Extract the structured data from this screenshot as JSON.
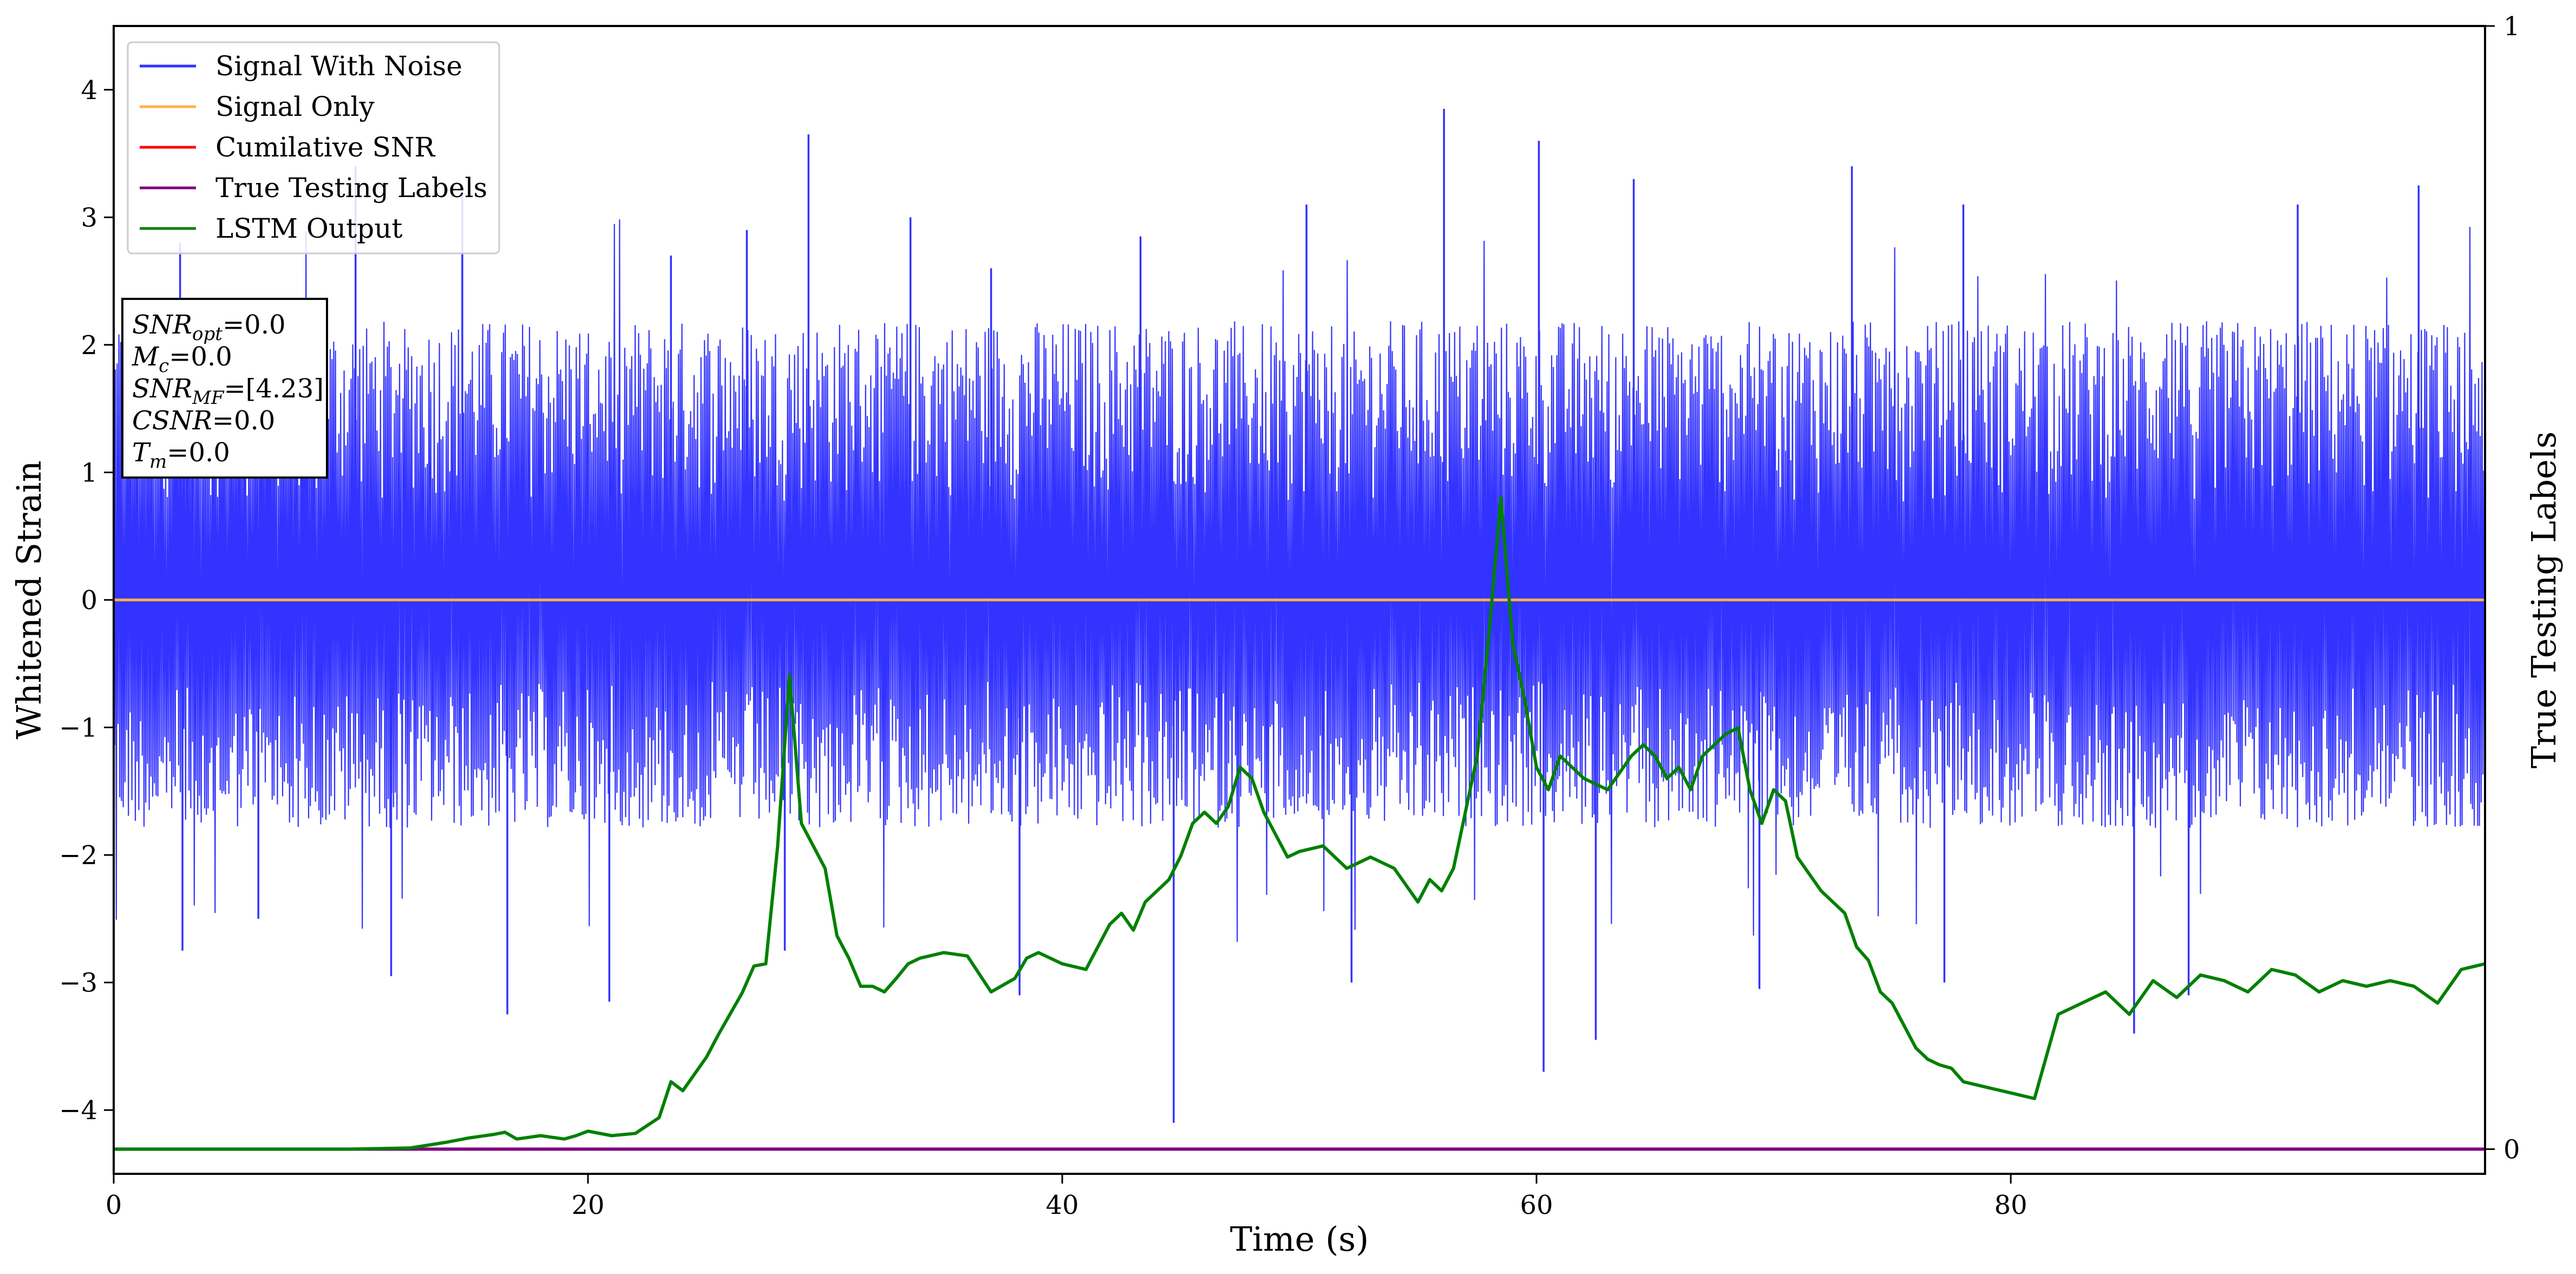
{
  "chart_data": {
    "type": "line",
    "title": "",
    "xlabel": "Time (s)",
    "ylabel": "Whitened Strain",
    "ylabel_right": "True Testing Labels",
    "xlim": [
      0,
      100
    ],
    "ylim": [
      -4.5,
      4.5
    ],
    "ylim_right": [
      -0.022,
      1.0
    ],
    "x_ticks": [
      "0",
      "20",
      "40",
      "60",
      "80"
    ],
    "y_ticks": [
      "−4",
      "−3",
      "−2",
      "−1",
      "0",
      "1",
      "2",
      "3",
      "4"
    ],
    "y_ticks_right": [
      "0",
      "1"
    ],
    "grid": false,
    "legend_position": "top-left",
    "legend": [
      {
        "label": "Signal With Noise",
        "color": "#3333ff"
      },
      {
        "label": "Signal Only",
        "color": "#ffb347"
      },
      {
        "label": "Cumilative SNR",
        "color": "#ff0000"
      },
      {
        "label": "True Testing Labels",
        "color": "#800080"
      },
      {
        "label": "LSTM Output",
        "color": "#008000"
      }
    ],
    "annotation": {
      "lines": [
        {
          "base": "SNR",
          "sub": "opt",
          "rest": "=0.0"
        },
        {
          "base": "M",
          "sub": "c",
          "rest": "=0.0"
        },
        {
          "base": "SNR",
          "sub": "MF",
          "rest": "=[4.23]"
        },
        {
          "base": "CSNR",
          "sub": "",
          "rest": "=0.0"
        },
        {
          "base": "T",
          "sub": "m",
          "rest": "=0.0"
        }
      ]
    },
    "series": [
      {
        "name": "Signal With Noise",
        "color": "#3333ff",
        "axis": "left",
        "x_range": [
          0,
          100
        ],
        "envelope_upper": 2.2,
        "envelope_lower": -1.8,
        "spikes_up": [
          [
            2.8,
            2.8
          ],
          [
            10.2,
            3.4
          ],
          [
            14.7,
            3.2
          ],
          [
            23.5,
            2.7
          ],
          [
            26.7,
            2.9
          ],
          [
            29.3,
            3.65
          ],
          [
            33.6,
            3.0
          ],
          [
            37.0,
            2.6
          ],
          [
            43.3,
            2.85
          ],
          [
            50.3,
            3.1
          ],
          [
            56.1,
            3.85
          ],
          [
            60.1,
            3.6
          ],
          [
            64.1,
            3.3
          ],
          [
            73.3,
            3.4
          ],
          [
            78.0,
            3.1
          ],
          [
            92.1,
            3.1
          ],
          [
            97.2,
            3.25
          ]
        ],
        "spikes_down": [
          [
            2.9,
            -2.75
          ],
          [
            6.1,
            -2.5
          ],
          [
            11.7,
            -2.95
          ],
          [
            16.6,
            -3.25
          ],
          [
            20.9,
            -3.15
          ],
          [
            28.3,
            -2.75
          ],
          [
            38.2,
            -3.1
          ],
          [
            44.7,
            -4.1
          ],
          [
            52.2,
            -3.0
          ],
          [
            60.3,
            -3.7
          ],
          [
            62.5,
            -3.45
          ],
          [
            69.4,
            -3.05
          ],
          [
            77.2,
            -3.0
          ],
          [
            85.2,
            -3.4
          ],
          [
            87.5,
            -3.1
          ]
        ]
      },
      {
        "name": "Signal Only",
        "color": "#ffb347",
        "axis": "left",
        "x": [
          0,
          100
        ],
        "y": [
          0,
          0
        ]
      },
      {
        "name": "True Testing Labels",
        "color": "#800080",
        "axis": "right",
        "x": [
          0,
          100
        ],
        "y": [
          0,
          0
        ]
      },
      {
        "name": "LSTM Output",
        "color": "#008000",
        "axis": "right",
        "x": [
          0,
          10,
          12.5,
          14,
          15,
          16,
          16.5,
          17,
          18,
          19,
          19.5,
          20,
          21,
          22,
          23,
          23.5,
          24,
          25,
          25.5,
          26.5,
          27,
          27.5,
          28,
          28.5,
          29,
          29.5,
          30,
          30.5,
          31,
          31.5,
          32,
          32.5,
          33,
          33.5,
          34,
          35,
          36,
          37,
          38,
          38.5,
          39,
          40,
          41,
          42,
          42.5,
          43,
          43.5,
          44.5,
          45,
          45.5,
          46,
          46.5,
          47,
          47.5,
          48,
          48.5,
          49,
          49.5,
          50,
          51,
          52,
          53,
          54,
          55,
          55.5,
          56,
          56.5,
          57,
          57.5,
          58,
          58.5,
          59,
          59.5,
          60,
          60.5,
          61,
          62,
          63,
          64,
          64.5,
          65,
          65.5,
          66,
          66.5,
          67,
          67.5,
          68,
          68.5,
          69,
          69.5,
          70,
          70.5,
          71,
          71.5,
          72,
          72.5,
          73,
          73.5,
          74,
          74.5,
          75,
          75.5,
          76,
          76.5,
          77,
          77.5,
          78,
          79,
          80,
          81,
          82,
          83,
          84,
          85,
          86,
          87,
          88,
          89,
          90,
          91,
          92,
          93,
          94,
          95,
          96,
          97,
          98,
          99,
          100
        ],
        "y": [
          0.0,
          0.0,
          0.001,
          0.006,
          0.01,
          0.013,
          0.015,
          0.009,
          0.012,
          0.009,
          0.012,
          0.016,
          0.012,
          0.014,
          0.028,
          0.06,
          0.052,
          0.082,
          0.102,
          0.139,
          0.163,
          0.165,
          0.27,
          0.422,
          0.29,
          0.27,
          0.25,
          0.19,
          0.17,
          0.145,
          0.145,
          0.14,
          0.152,
          0.165,
          0.17,
          0.175,
          0.172,
          0.14,
          0.152,
          0.17,
          0.175,
          0.165,
          0.16,
          0.2,
          0.21,
          0.195,
          0.22,
          0.24,
          0.261,
          0.29,
          0.3,
          0.29,
          0.305,
          0.34,
          0.33,
          0.3,
          0.28,
          0.26,
          0.265,
          0.27,
          0.25,
          0.26,
          0.25,
          0.22,
          0.24,
          0.23,
          0.25,
          0.3,
          0.35,
          0.46,
          0.58,
          0.45,
          0.4,
          0.34,
          0.32,
          0.35,
          0.33,
          0.32,
          0.35,
          0.36,
          0.35,
          0.33,
          0.34,
          0.32,
          0.35,
          0.36,
          0.37,
          0.375,
          0.32,
          0.29,
          0.32,
          0.31,
          0.26,
          0.245,
          0.23,
          0.22,
          0.21,
          0.18,
          0.168,
          0.14,
          0.13,
          0.11,
          0.09,
          0.08,
          0.075,
          0.072,
          0.06,
          0.055,
          0.05,
          0.045,
          0.12,
          0.13,
          0.14,
          0.12,
          0.15,
          0.135,
          0.155,
          0.15,
          0.14,
          0.16,
          0.155,
          0.14,
          0.15,
          0.145,
          0.15,
          0.145,
          0.13,
          0.16,
          0.165
        ]
      }
    ]
  }
}
